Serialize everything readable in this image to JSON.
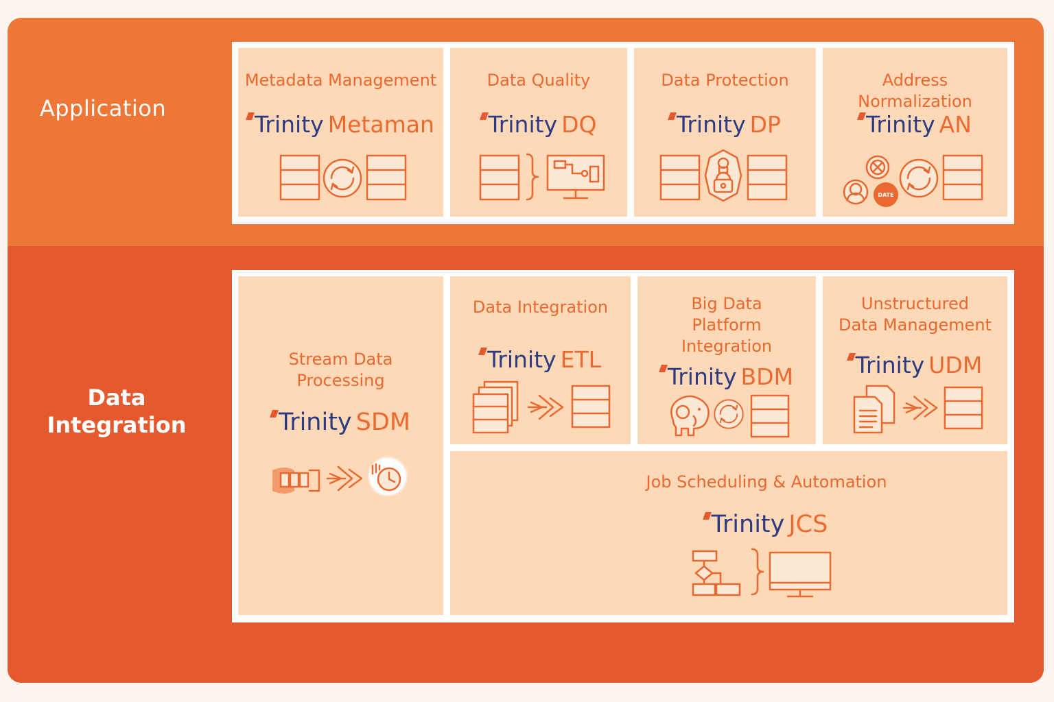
{
  "sections": {
    "application": "Application",
    "data_integration": "Data\nIntegration"
  },
  "brand_word": "Trinity",
  "application": [
    {
      "title": "Metadata Management",
      "product": "Metaman",
      "icons": [
        "table-icon",
        "sync-icon",
        "table-icon"
      ]
    },
    {
      "title": "Data Quality",
      "product": "DQ",
      "icons": [
        "table-icon",
        "brace-icon",
        "monitor-flow-icon"
      ]
    },
    {
      "title": "Data Protection",
      "product": "DP",
      "icons": [
        "table-icon",
        "shield-lock-icon",
        "table-icon"
      ]
    },
    {
      "title": "Address Normalization",
      "product": "AN",
      "icons": [
        "address-icons",
        "sync-icon",
        "table-icon"
      ],
      "badge": "DATE"
    }
  ],
  "data_integration": [
    {
      "title": "Stream Data\nProcessing",
      "product": "SDM",
      "icons": [
        "stream-icon",
        "plane-arrow-icon",
        "clock-icon"
      ]
    },
    {
      "title": "Data Integration",
      "product": "ETL",
      "icons": [
        "stacked-tables-icon",
        "plane-arrow-icon",
        "table-icon"
      ]
    },
    {
      "title": "Big Data\nPlatform\nIntegration",
      "product": "BDM",
      "icons": [
        "elephant-icon",
        "sync-icon",
        "table-icon"
      ]
    },
    {
      "title": "Unstructured\nData Management",
      "product": "UDM",
      "icons": [
        "documents-icon",
        "plane-arrow-icon",
        "table-icon"
      ]
    },
    {
      "title": "Job Scheduling & Automation",
      "product": "JCS",
      "icons": [
        "flowchart-icon",
        "brace-icon",
        "monitor-icon"
      ]
    }
  ],
  "colors": {
    "application_band": "#ee7738",
    "data_integration_band": "#e4592e",
    "card": "#fdd9b8",
    "accent": "#e9682f",
    "brand_navy": "#2d3a82"
  }
}
